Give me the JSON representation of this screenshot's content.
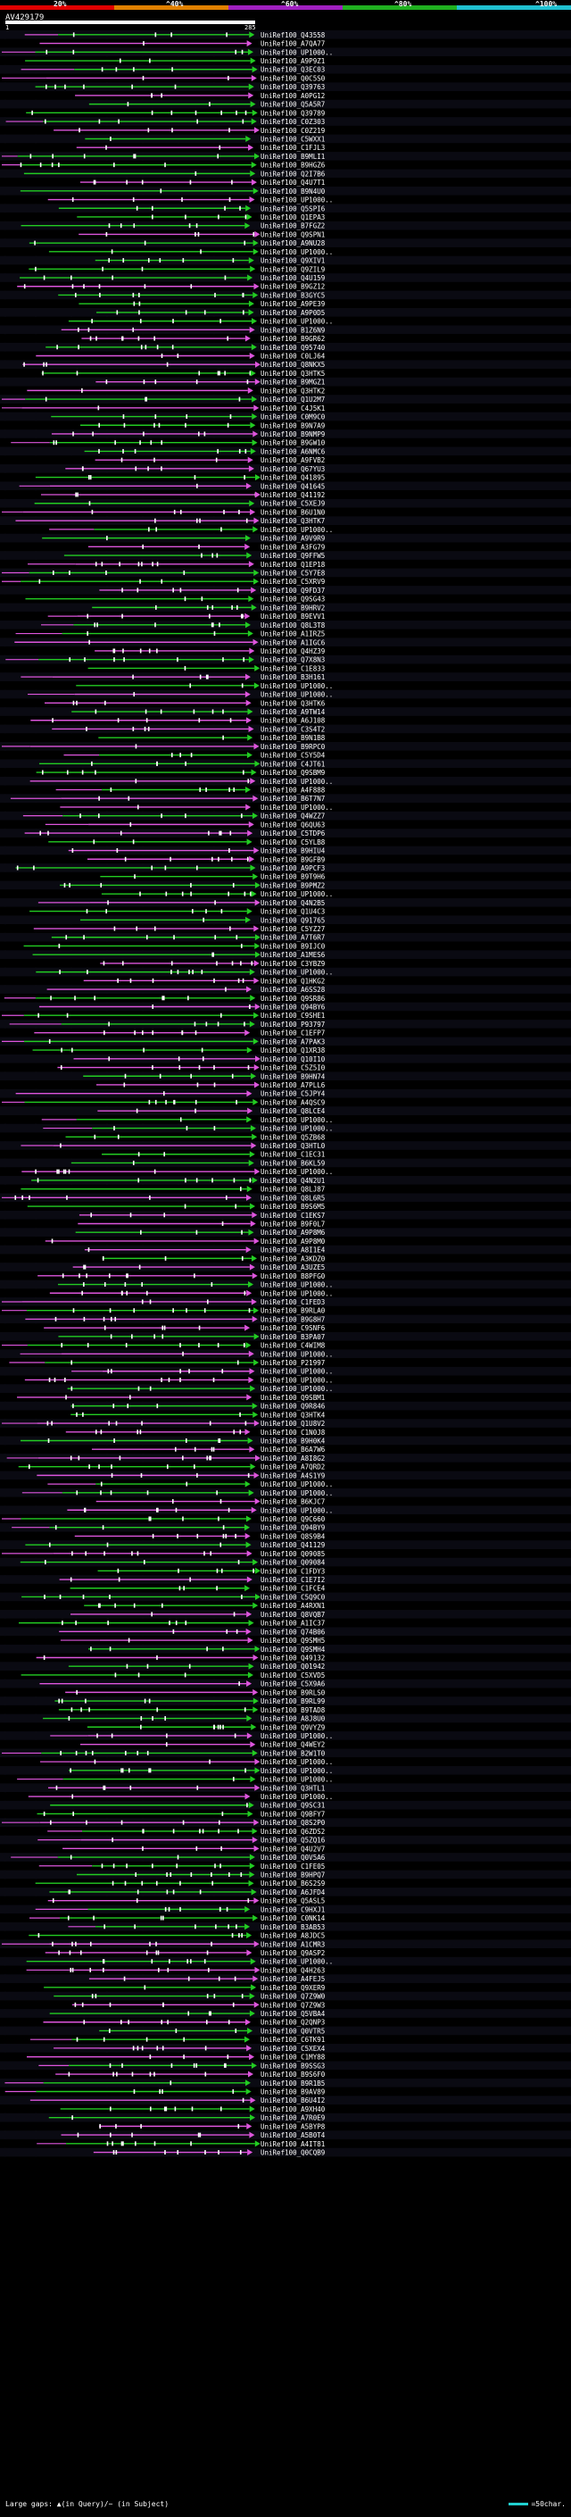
{
  "scale": {
    "labels": [
      "20%",
      "^40%",
      "^60%",
      "^80%",
      "^100%"
    ],
    "colors": [
      "#e00000",
      "#e08000",
      "#a020c0",
      "#20b020",
      "#20c0d0"
    ]
  },
  "query": {
    "id": "AV429179",
    "start": "1",
    "end": "285"
  },
  "footer": {
    "gaps_text": "Large gaps: ▲(in Query)/~ (in Subject)",
    "legend_text": "=50char."
  },
  "colors": {
    "green": "#22cc22",
    "magenta": "#dd55dd",
    "row_bg": "#0a0a12"
  },
  "hits": [
    "UniRef100_Q43558",
    "UniRef100_A7QA77",
    "UniRef100_UP1000..",
    "UniRef100_A9P9Z1",
    "UniRef100_Q3EC03",
    "UniRef100_Q0C5S0",
    "UniRef100_Q39763",
    "UniRef100_A0PG12",
    "UniRef100_Q5A5R7",
    "UniRef100_Q39789",
    "UniRef100_C0Z303",
    "UniRef100_C0Z219",
    "UniRef100_C5WXX1",
    "UniRef100_C1FJL3",
    "UniRef100_B9MLI1",
    "UniRef100_B9HGZ6",
    "UniRef100_Q2I7B6",
    "UniRef100_Q4U7T1",
    "UniRef100_B9N4U0",
    "UniRef100_UP1000..",
    "UniRef100_Q5SPI6",
    "UniRef100_Q1EPA3",
    "UniRef100_B7FGZ2",
    "UniRef100_Q9SPN1",
    "UniRef100_A9NU28",
    "UniRef100_UP1000..",
    "UniRef100_Q9XIV1",
    "UniRef100_Q9ZIL9",
    "UniRef100_Q4U159",
    "UniRef100_B9GZ12",
    "UniRef100_B3GYC5",
    "UniRef100_A9PE39",
    "UniRef100_A9P0D5",
    "UniRef100_UP1000..",
    "UniRef100_B1Z6N9",
    "UniRef100_B9GR62",
    "UniRef100_Q95740",
    "UniRef100_C0LJ64",
    "UniRef100_Q8NKX5",
    "UniRef100_Q3HTK5",
    "UniRef100_B9MGZ1",
    "UniRef100_Q3HTK2",
    "UniRef100_Q1U2M7",
    "UniRef100_C4J5K1",
    "UniRef100_C0M9C0",
    "UniRef100_B9N7A9",
    "UniRef100_B9NMP9",
    "UniRef100_B9GW10",
    "UniRef100_A6NMC6",
    "UniRef100_A9FVB2",
    "UniRef100_Q67YU3",
    "UniRef100_Q41895",
    "UniRef100_Q41645",
    "UniRef100_Q41192",
    "UniRef100_C5XEJ9",
    "UniRef100_B6U1N0",
    "UniRef100_Q3HTK7",
    "UniRef100_UP1000..",
    "UniRef100_A9V9R9",
    "UniRef100_A3FG79",
    "UniRef100_Q9FFW5",
    "UniRef100_Q1EP18",
    "UniRef100_C5Y7E8",
    "UniRef100_C5XRV9",
    "UniRef100_Q9FD37",
    "UniRef100_Q9SG43",
    "UniRef100_B9HRV2",
    "UniRef100_B9EVV1",
    "UniRef100_Q8L3T8",
    "UniRef100_A1IRZ5",
    "UniRef100_A1IGC6",
    "UniRef100_Q4HZ39",
    "UniRef100_Q7X8N3",
    "UniRef100_C1E833",
    "UniRef100_B3H161",
    "UniRef100_UP1000..",
    "UniRef100_UP1000..",
    "UniRef100_Q3HTK6",
    "UniRef100_A9TW14",
    "UniRef100_A6J108",
    "UniRef100_C3S4T2",
    "UniRef100_B9N1B8",
    "UniRef100_B9RPC0",
    "UniRef100_C5Y5D4",
    "UniRef100_C4JT61",
    "UniRef100_Q9SBM9",
    "UniRef100_UP1000..",
    "UniRef100_A4F888",
    "UniRef100_B6T7N7",
    "UniRef100_UP1000..",
    "UniRef100_Q4WZZ7",
    "UniRef100_Q6QU63",
    "UniRef100_C5TDP6",
    "UniRef100_C5YLB8",
    "UniRef100_B9HIU4",
    "UniRef100_B9GFB9",
    "UniRef100_A9PCF3",
    "UniRef100_B9T9H6",
    "UniRef100_B9PMZ2",
    "UniRef100_UP1000..",
    "UniRef100_Q4N2B5",
    "UniRef100_Q1U4C3",
    "UniRef100_Q91765",
    "UniRef100_C5YZ27",
    "UniRef100_A7T6R7",
    "UniRef100_B9IJC0",
    "UniRef100_A1MES6",
    "UniRef100_C3YBZ9",
    "UniRef100_UP1000..",
    "UniRef100_Q1HKG2",
    "UniRef100_A6SS28",
    "UniRef100_Q9SR86",
    "UniRef100_Q94BY6",
    "UniRef100_C9SHE1",
    "UniRef100_P93797",
    "UniRef100_C1EFP7",
    "UniRef100_A7PAK3",
    "UniRef100_Q1XR38",
    "UniRef100_Q10I10",
    "UniRef100_C5Z5I0",
    "UniRef100_B9HN74",
    "UniRef100_A7PLL6",
    "UniRef100_C5JPY4",
    "UniRef100_A4QSC9",
    "UniRef100_Q8LCE4",
    "UniRef100_UP1000..",
    "UniRef100_UP1000..",
    "UniRef100_Q5ZB68",
    "UniRef100_Q3HTL0",
    "UniRef100_C1EC31",
    "UniRef100_B6KL59",
    "UniRef100_UP1000..",
    "UniRef100_Q4N2U1",
    "UniRef100_Q8LJ87",
    "UniRef100_Q8L6R5",
    "UniRef100_B9S6M5",
    "UniRef100_C1EKS7",
    "UniRef100_B9F0L7",
    "UniRef100_A9P8M6",
    "UniRef100_A9P8M0",
    "UniRef100_A8I1E4",
    "UniRef100_A3KDZ0",
    "UniRef100_A3UZE5",
    "UniRef100_B8PFG0",
    "UniRef100_UP1000..",
    "UniRef100_UP1000..",
    "UniRef100_C1FED3",
    "UniRef100_B9RLA0",
    "UniRef100_B9G8H7",
    "UniRef100_C9SNF6",
    "UniRef100_B3PA07",
    "UniRef100_C4WIM8",
    "UniRef100_UP1000..",
    "UniRef100_P21997",
    "UniRef100_UP1000..",
    "UniRef100_UP1000..",
    "UniRef100_UP1000..",
    "UniRef100_Q9SBM1",
    "UniRef100_Q9R846",
    "UniRef100_Q3HTK4",
    "UniRef100_Q1U8V2",
    "UniRef100_C1N0J8",
    "UniRef100_B9H0K4",
    "UniRef100_B6A7W6",
    "UniRef100_A8I8G2",
    "UniRef100_A7QRD2",
    "UniRef100_A4S1Y9",
    "UniRef100_UP1000..",
    "UniRef100_UP1000..",
    "UniRef100_B6KJC7",
    "UniRef100_UP1000..",
    "UniRef100_Q9C660",
    "UniRef100_Q94BY9",
    "UniRef100_Q8S9B4",
    "UniRef100_Q41129",
    "UniRef100_Q09085",
    "UniRef100_Q09084",
    "UniRef100_C1FDY3",
    "UniRef100_C1E7I2",
    "UniRef100_C1FCE4",
    "UniRef100_C5Q9C0",
    "UniRef100_A4RXN1",
    "UniRef100_Q8VQB7",
    "UniRef100_A1IC37",
    "UniRef100_Q74B06",
    "UniRef100_Q9SMH5",
    "UniRef100_Q9SMH4",
    "UniRef100_Q49132",
    "UniRef100_Q01942",
    "UniRef100_C5XVD5",
    "UniRef100_C5X9A6",
    "UniRef100_B9RLS0",
    "UniRef100_B9RL99",
    "UniRef100_B9TAD8",
    "UniRef100_A8J8U0",
    "UniRef100_Q9VYZ9",
    "UniRef100_UP1000..",
    "UniRef100_Q4WEY2",
    "UniRef100_B2W1T0",
    "UniRef100_UP1000..",
    "UniRef100_UP1000..",
    "UniRef100_UP1000..",
    "UniRef100_Q3HTL1",
    "UniRef100_UP1000..",
    "UniRef100_Q9SC31",
    "UniRef100_Q9BFY7",
    "UniRef100_Q8S2P0",
    "UniRef100_Q6ZDS2",
    "UniRef100_Q5ZQ16",
    "UniRef100_Q4U2V7",
    "UniRef100_Q0V5A6",
    "UniRef100_C1FE05",
    "UniRef100_B9HPQ7",
    "UniRef100_B6S2S9",
    "UniRef100_A6JFD4",
    "UniRef100_Q5ASL5",
    "UniRef100_C9HXJ1",
    "UniRef100_C0NK14",
    "UniRef100_B3AB53",
    "UniRef100_A8JDC5",
    "UniRef100_A1CMR3",
    "UniRef100_Q9ASP2",
    "UniRef100_UP1000..",
    "UniRef100_Q4H263",
    "UniRef100_A4FEJ5",
    "UniRef100_Q9XER9",
    "UniRef100_Q7Z9W0",
    "UniRef100_Q7Z9W3",
    "UniRef100_Q5VBA4",
    "UniRef100_Q2QNP3",
    "UniRef100_Q0VTR5",
    "UniRef100_C6TK91",
    "UniRef100_C5XEX4",
    "UniRef100_C1MY88",
    "UniRef100_B9SSG3",
    "UniRef100_B9S6F0",
    "UniRef100_B9R1B5",
    "UniRef100_B9AV89",
    "UniRef100_B6U4I2",
    "UniRef100_A9XH40",
    "UniRef100_A7R0E9",
    "UniRef100_A5BYP8",
    "UniRef100_A5B0T4",
    "UniRef100_A4IT81",
    "UniRef100_Q0CQB9"
  ]
}
